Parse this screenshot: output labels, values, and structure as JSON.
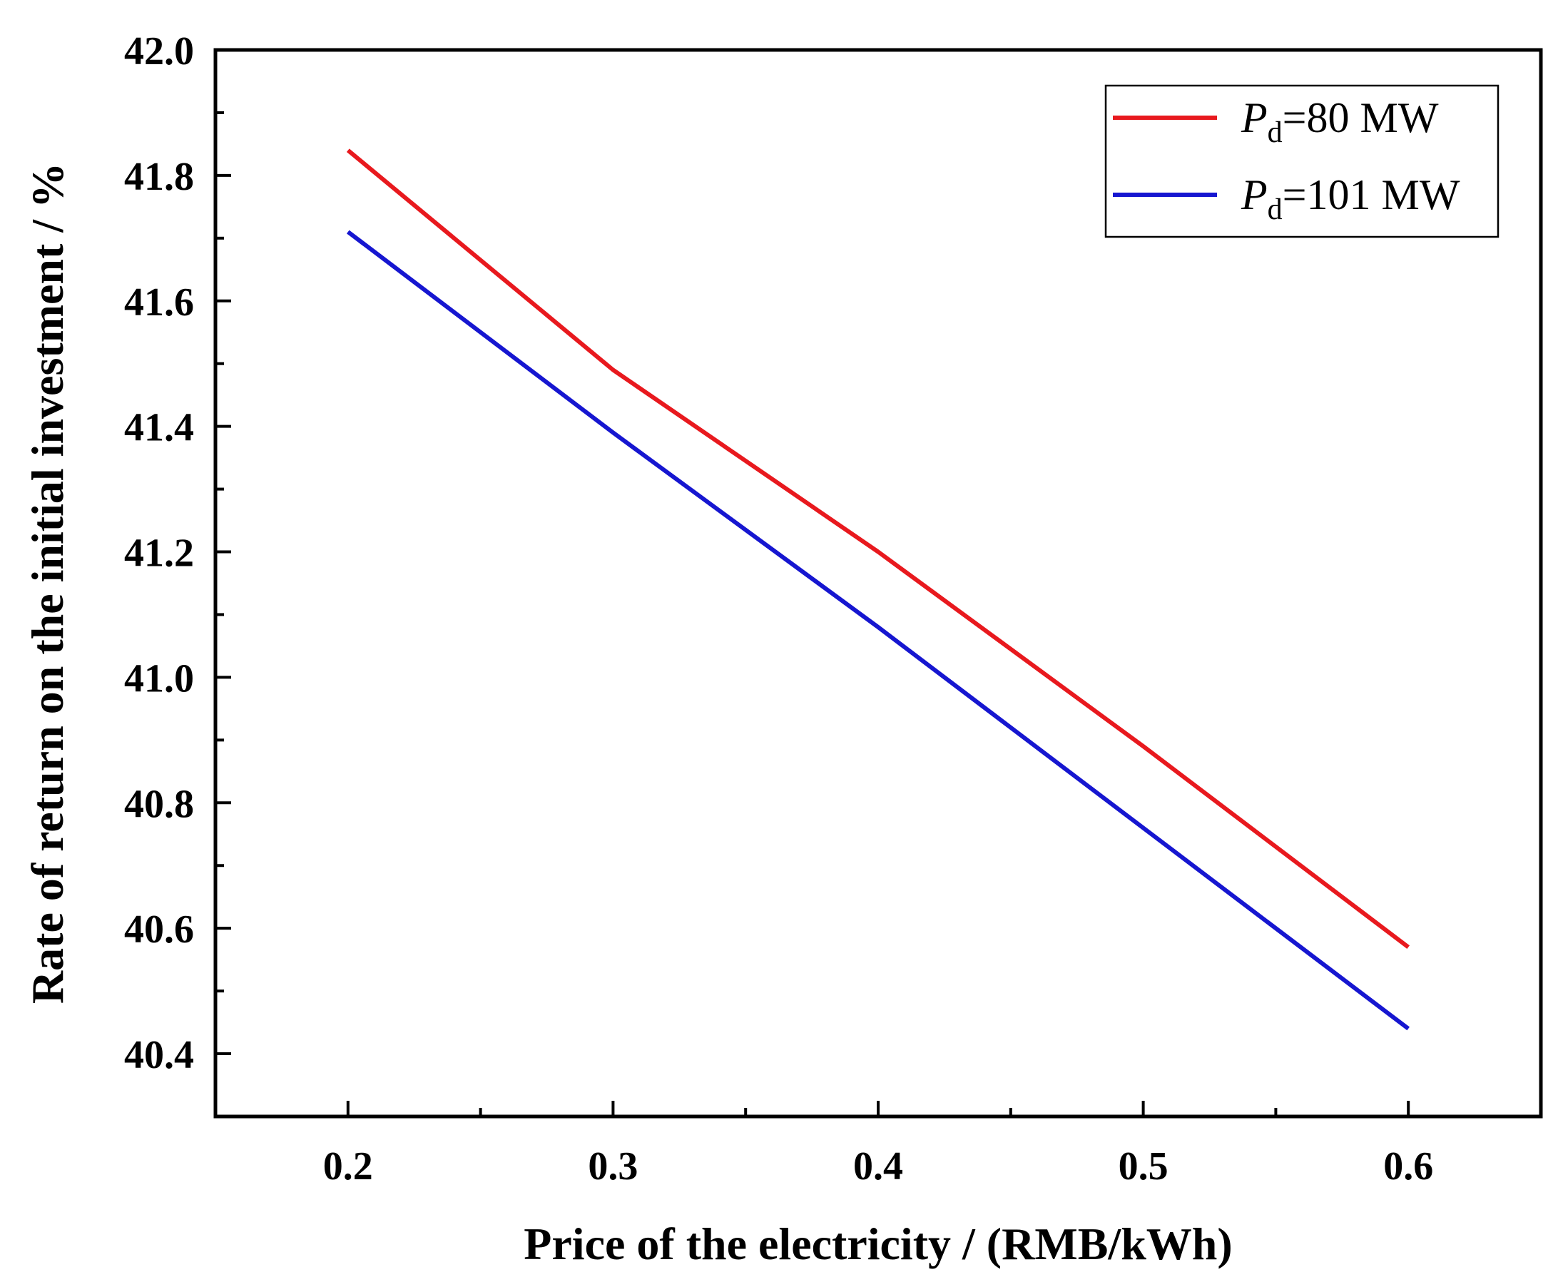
{
  "chart_data": {
    "type": "line",
    "title": "",
    "xlabel": "Price of the electricity / (RMB/kWh)",
    "ylabel": "Rate of return on the initial investment / %",
    "xlim": [
      0.15,
      0.65
    ],
    "ylim": [
      40.3,
      42.0
    ],
    "xticks": [
      "0.2",
      "0.3",
      "0.4",
      "0.5",
      "0.6"
    ],
    "yticks": [
      "40.4",
      "40.6",
      "40.8",
      "41.0",
      "41.2",
      "41.4",
      "41.6",
      "41.8",
      "42.0"
    ],
    "grid": false,
    "legend_position": "top-right",
    "series": [
      {
        "name": "Pd=80 MW",
        "legend_symbol": "P",
        "legend_subscript": "d",
        "legend_value": "=80 MW",
        "color": "#e8191e",
        "x": [
          0.2,
          0.3,
          0.4,
          0.5,
          0.6
        ],
        "y": [
          41.84,
          41.49,
          41.2,
          40.89,
          40.57
        ]
      },
      {
        "name": "Pd=101 MW",
        "legend_symbol": "P",
        "legend_subscript": "d",
        "legend_value": "=101 MW",
        "color": "#1616d0",
        "x": [
          0.2,
          0.3,
          0.4,
          0.5,
          0.6
        ],
        "y": [
          41.71,
          41.39,
          41.08,
          40.76,
          40.44
        ]
      }
    ]
  }
}
